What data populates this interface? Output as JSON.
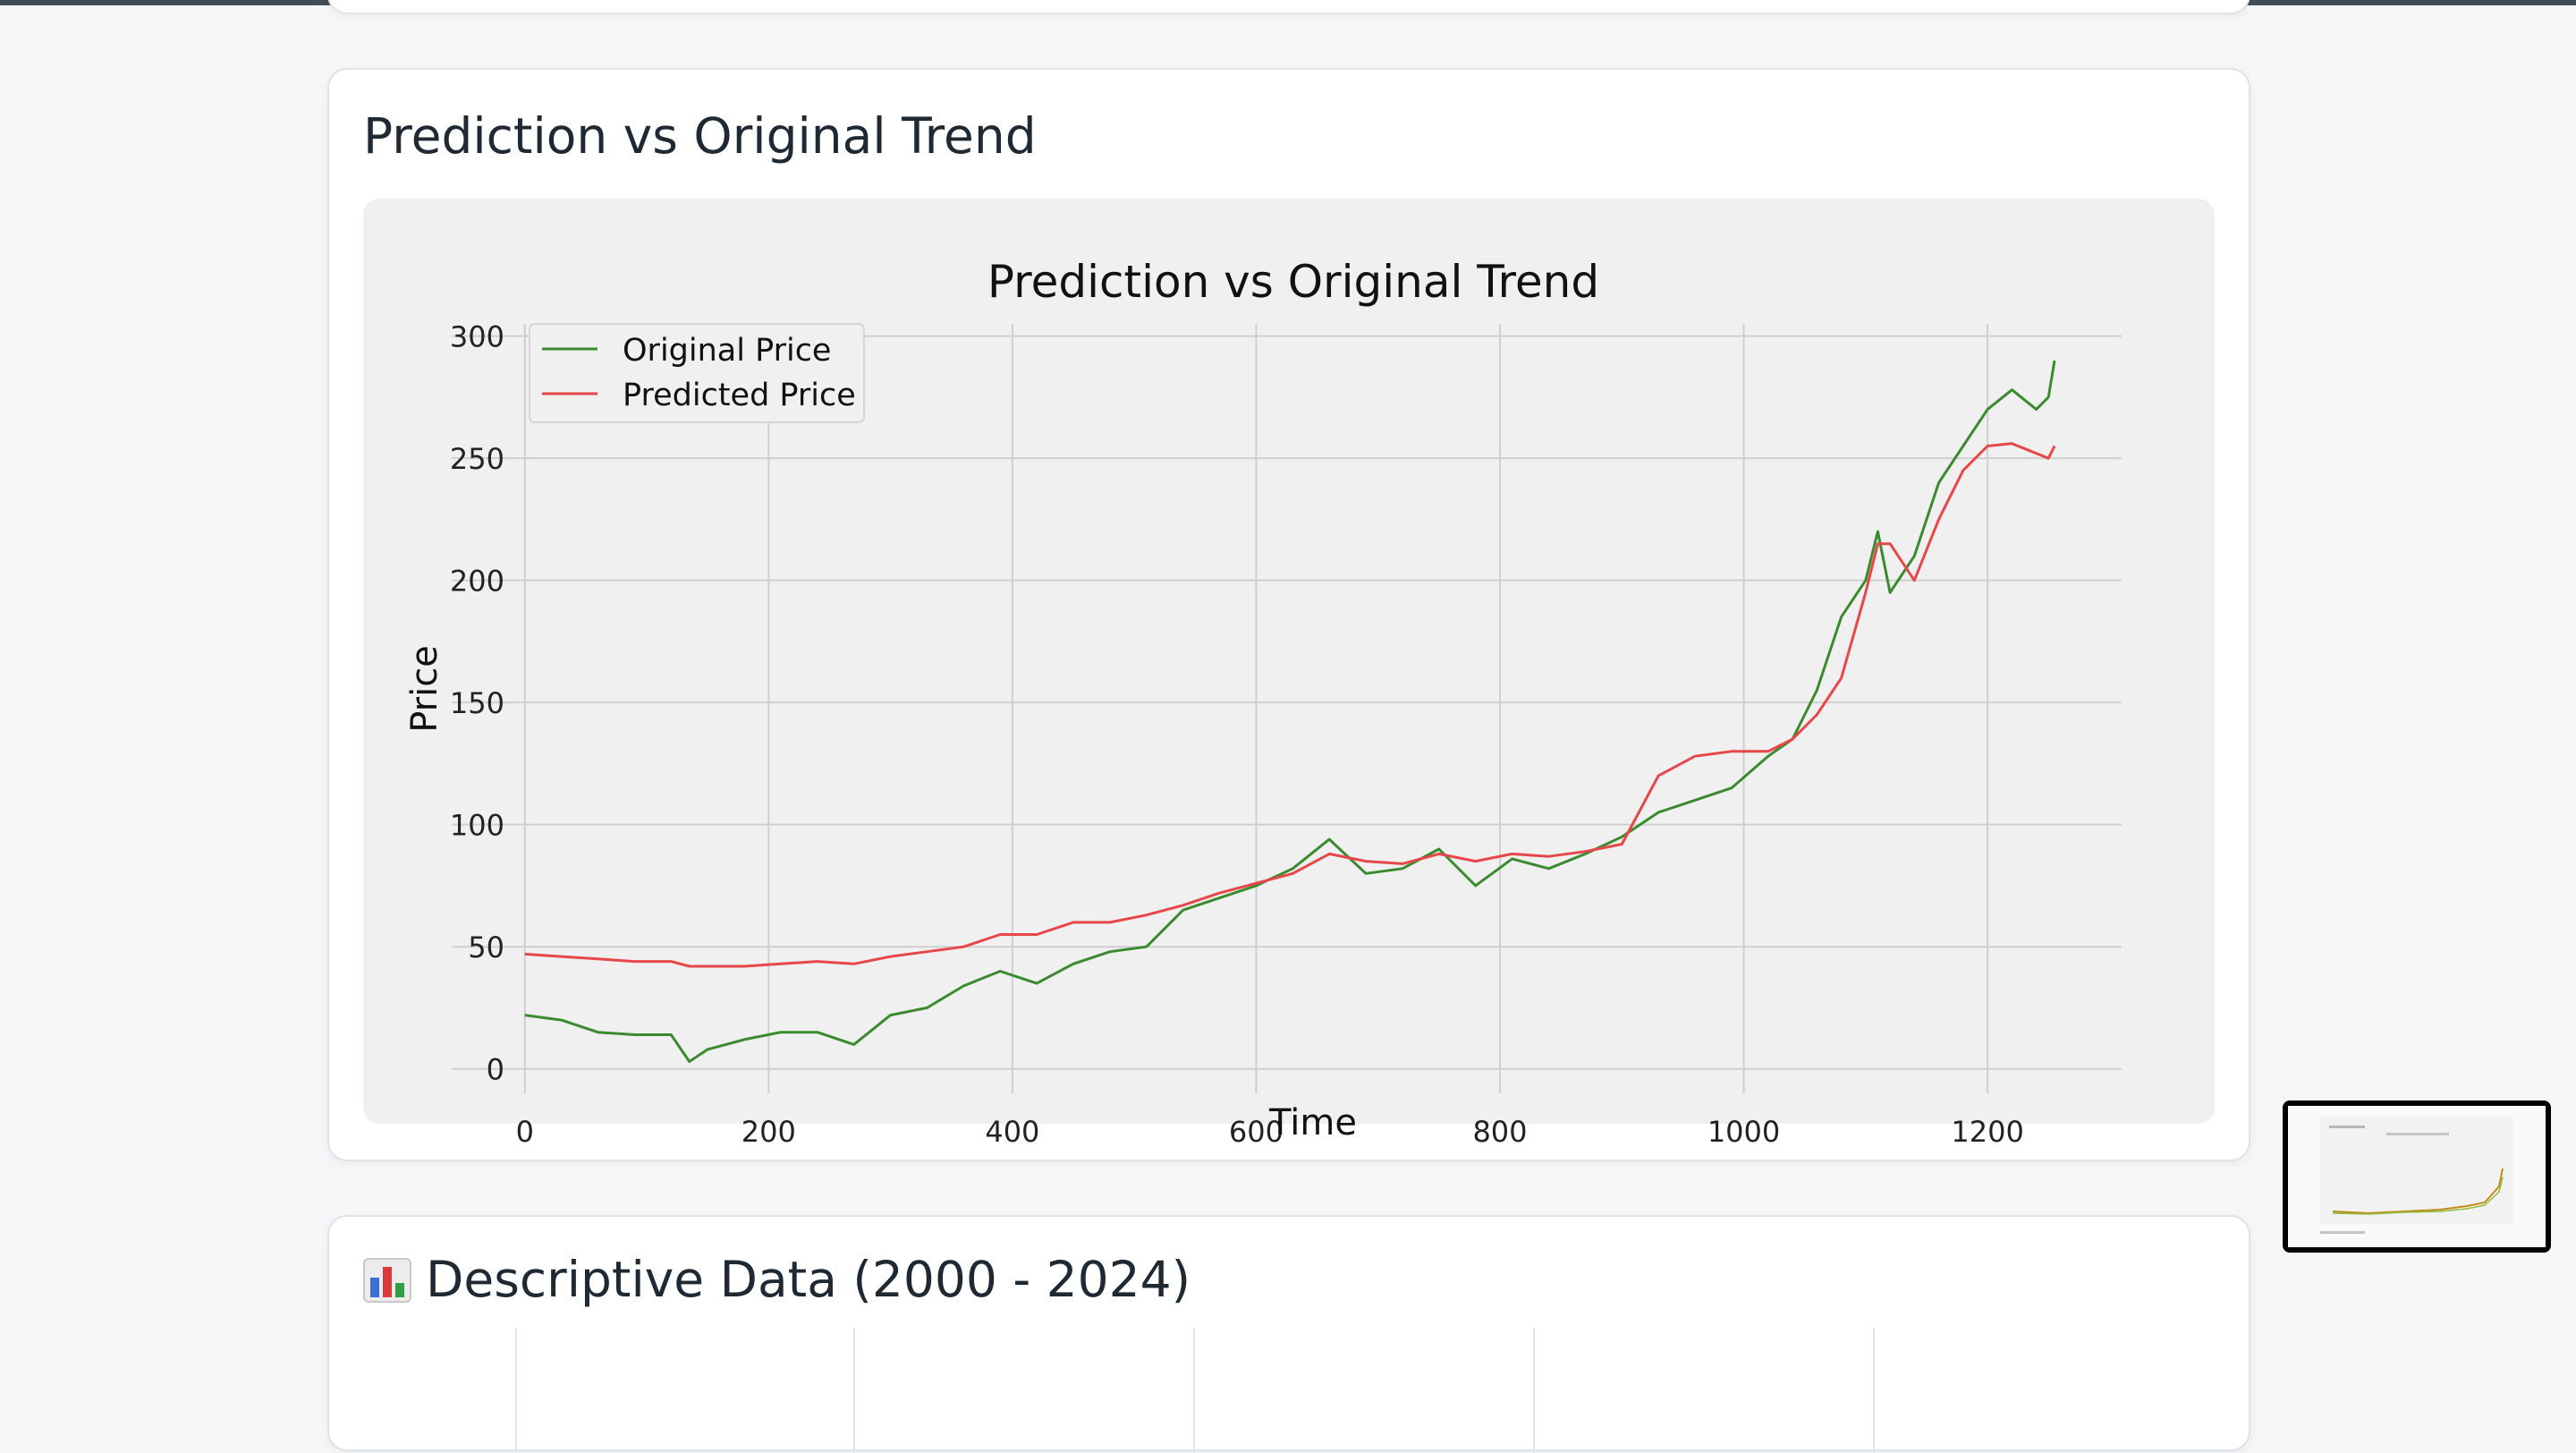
{
  "prediction_card": {
    "title": "Prediction vs Original Trend"
  },
  "descriptive_card": {
    "icon": "bar-chart-icon",
    "title": "Descriptive Data (2000 - 2024)"
  },
  "colors": {
    "original": "#3a8a2e",
    "predicted": "#e8474a",
    "chart_bg": "#f0f0f0",
    "grid": "#cfcfcf"
  },
  "chart_data": {
    "type": "line",
    "title": "Prediction vs Original Trend",
    "xlabel": "Time",
    "ylabel": "Price",
    "xlim": [
      -60,
      1310
    ],
    "ylim": [
      -10,
      305
    ],
    "xticks": [
      0,
      200,
      400,
      600,
      800,
      1000,
      1200
    ],
    "yticks": [
      0,
      50,
      100,
      150,
      200,
      250,
      300
    ],
    "grid": true,
    "legend": "top-left",
    "series": [
      {
        "name": "Original Price",
        "color": "#3a8a2e",
        "x": [
          0,
          30,
          60,
          90,
          120,
          135,
          150,
          180,
          210,
          240,
          270,
          300,
          330,
          360,
          390,
          420,
          450,
          480,
          510,
          540,
          570,
          600,
          630,
          660,
          690,
          720,
          750,
          780,
          810,
          840,
          870,
          900,
          930,
          960,
          990,
          1020,
          1040,
          1060,
          1080,
          1100,
          1110,
          1120,
          1140,
          1160,
          1180,
          1200,
          1220,
          1240,
          1250,
          1255
        ],
        "y": [
          22,
          20,
          15,
          14,
          14,
          3,
          8,
          12,
          15,
          15,
          10,
          22,
          25,
          34,
          40,
          35,
          43,
          48,
          50,
          65,
          70,
          75,
          82,
          94,
          80,
          82,
          90,
          75,
          86,
          82,
          88,
          95,
          105,
          110,
          115,
          128,
          135,
          155,
          185,
          200,
          220,
          195,
          210,
          240,
          255,
          270,
          278,
          270,
          275,
          290
        ]
      },
      {
        "name": "Predicted Price",
        "color": "#e8474a",
        "x": [
          0,
          30,
          60,
          90,
          120,
          135,
          150,
          180,
          210,
          240,
          270,
          300,
          330,
          360,
          390,
          420,
          450,
          480,
          510,
          540,
          570,
          600,
          630,
          660,
          690,
          720,
          750,
          780,
          810,
          840,
          870,
          900,
          930,
          960,
          990,
          1020,
          1040,
          1060,
          1080,
          1100,
          1110,
          1120,
          1140,
          1160,
          1180,
          1200,
          1220,
          1240,
          1250,
          1255
        ],
        "y": [
          47,
          46,
          45,
          44,
          44,
          42,
          42,
          42,
          43,
          44,
          43,
          46,
          48,
          50,
          55,
          55,
          60,
          60,
          63,
          67,
          72,
          76,
          80,
          88,
          85,
          84,
          88,
          85,
          88,
          87,
          89,
          92,
          120,
          128,
          130,
          130,
          135,
          145,
          160,
          195,
          215,
          215,
          200,
          225,
          245,
          255,
          256,
          252,
          250,
          255
        ]
      }
    ]
  }
}
